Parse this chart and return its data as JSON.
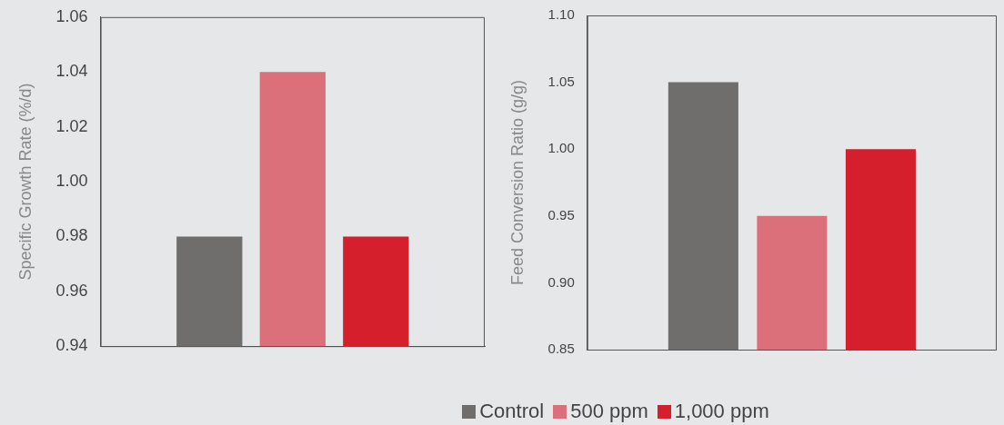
{
  "chart_data": [
    {
      "type": "bar",
      "ylabel": "Specific Growth Rate (%/d)",
      "categories": [
        null
      ],
      "ylim": [
        0.94,
        1.06
      ],
      "yticks": [
        {
          "value": 0.94,
          "label": "0.94"
        },
        {
          "value": 0.96,
          "label": "0.96"
        },
        {
          "value": 0.98,
          "label": "0.98"
        },
        {
          "value": 1.0,
          "label": "1.00"
        },
        {
          "value": 1.02,
          "label": "1.02"
        },
        {
          "value": 1.04,
          "label": "1.04"
        },
        {
          "value": 1.06,
          "label": "1.06"
        }
      ],
      "grid": false,
      "legend": "bottom",
      "series": [
        {
          "name": "Control",
          "color": "#6f6e6c",
          "values": [
            0.98
          ]
        },
        {
          "name": "500 ppm",
          "color": "#dc707a",
          "values": [
            1.04
          ]
        },
        {
          "name": "1,000 ppm",
          "color": "#d51f2d",
          "values": [
            0.98
          ]
        }
      ]
    },
    {
      "type": "bar",
      "ylabel": "Feed Conversion Ratio (g/g)",
      "categories": [
        null
      ],
      "ylim": [
        0.85,
        1.1
      ],
      "yticks": [
        {
          "value": 0.85,
          "label": "0.85"
        },
        {
          "value": 0.9,
          "label": "0.90"
        },
        {
          "value": 0.95,
          "label": "0.95"
        },
        {
          "value": 1.0,
          "label": "1.00"
        },
        {
          "value": 1.05,
          "label": "1.05"
        },
        {
          "value": 1.1,
          "label": "1.10"
        }
      ],
      "grid": false,
      "series": [
        {
          "color": "#6f6e6c",
          "values": [
            1.05
          ]
        },
        {
          "color": "#dc707a",
          "values": [
            0.95
          ]
        },
        {
          "color": "#d51f2d",
          "values": [
            1.0
          ]
        }
      ]
    }
  ]
}
